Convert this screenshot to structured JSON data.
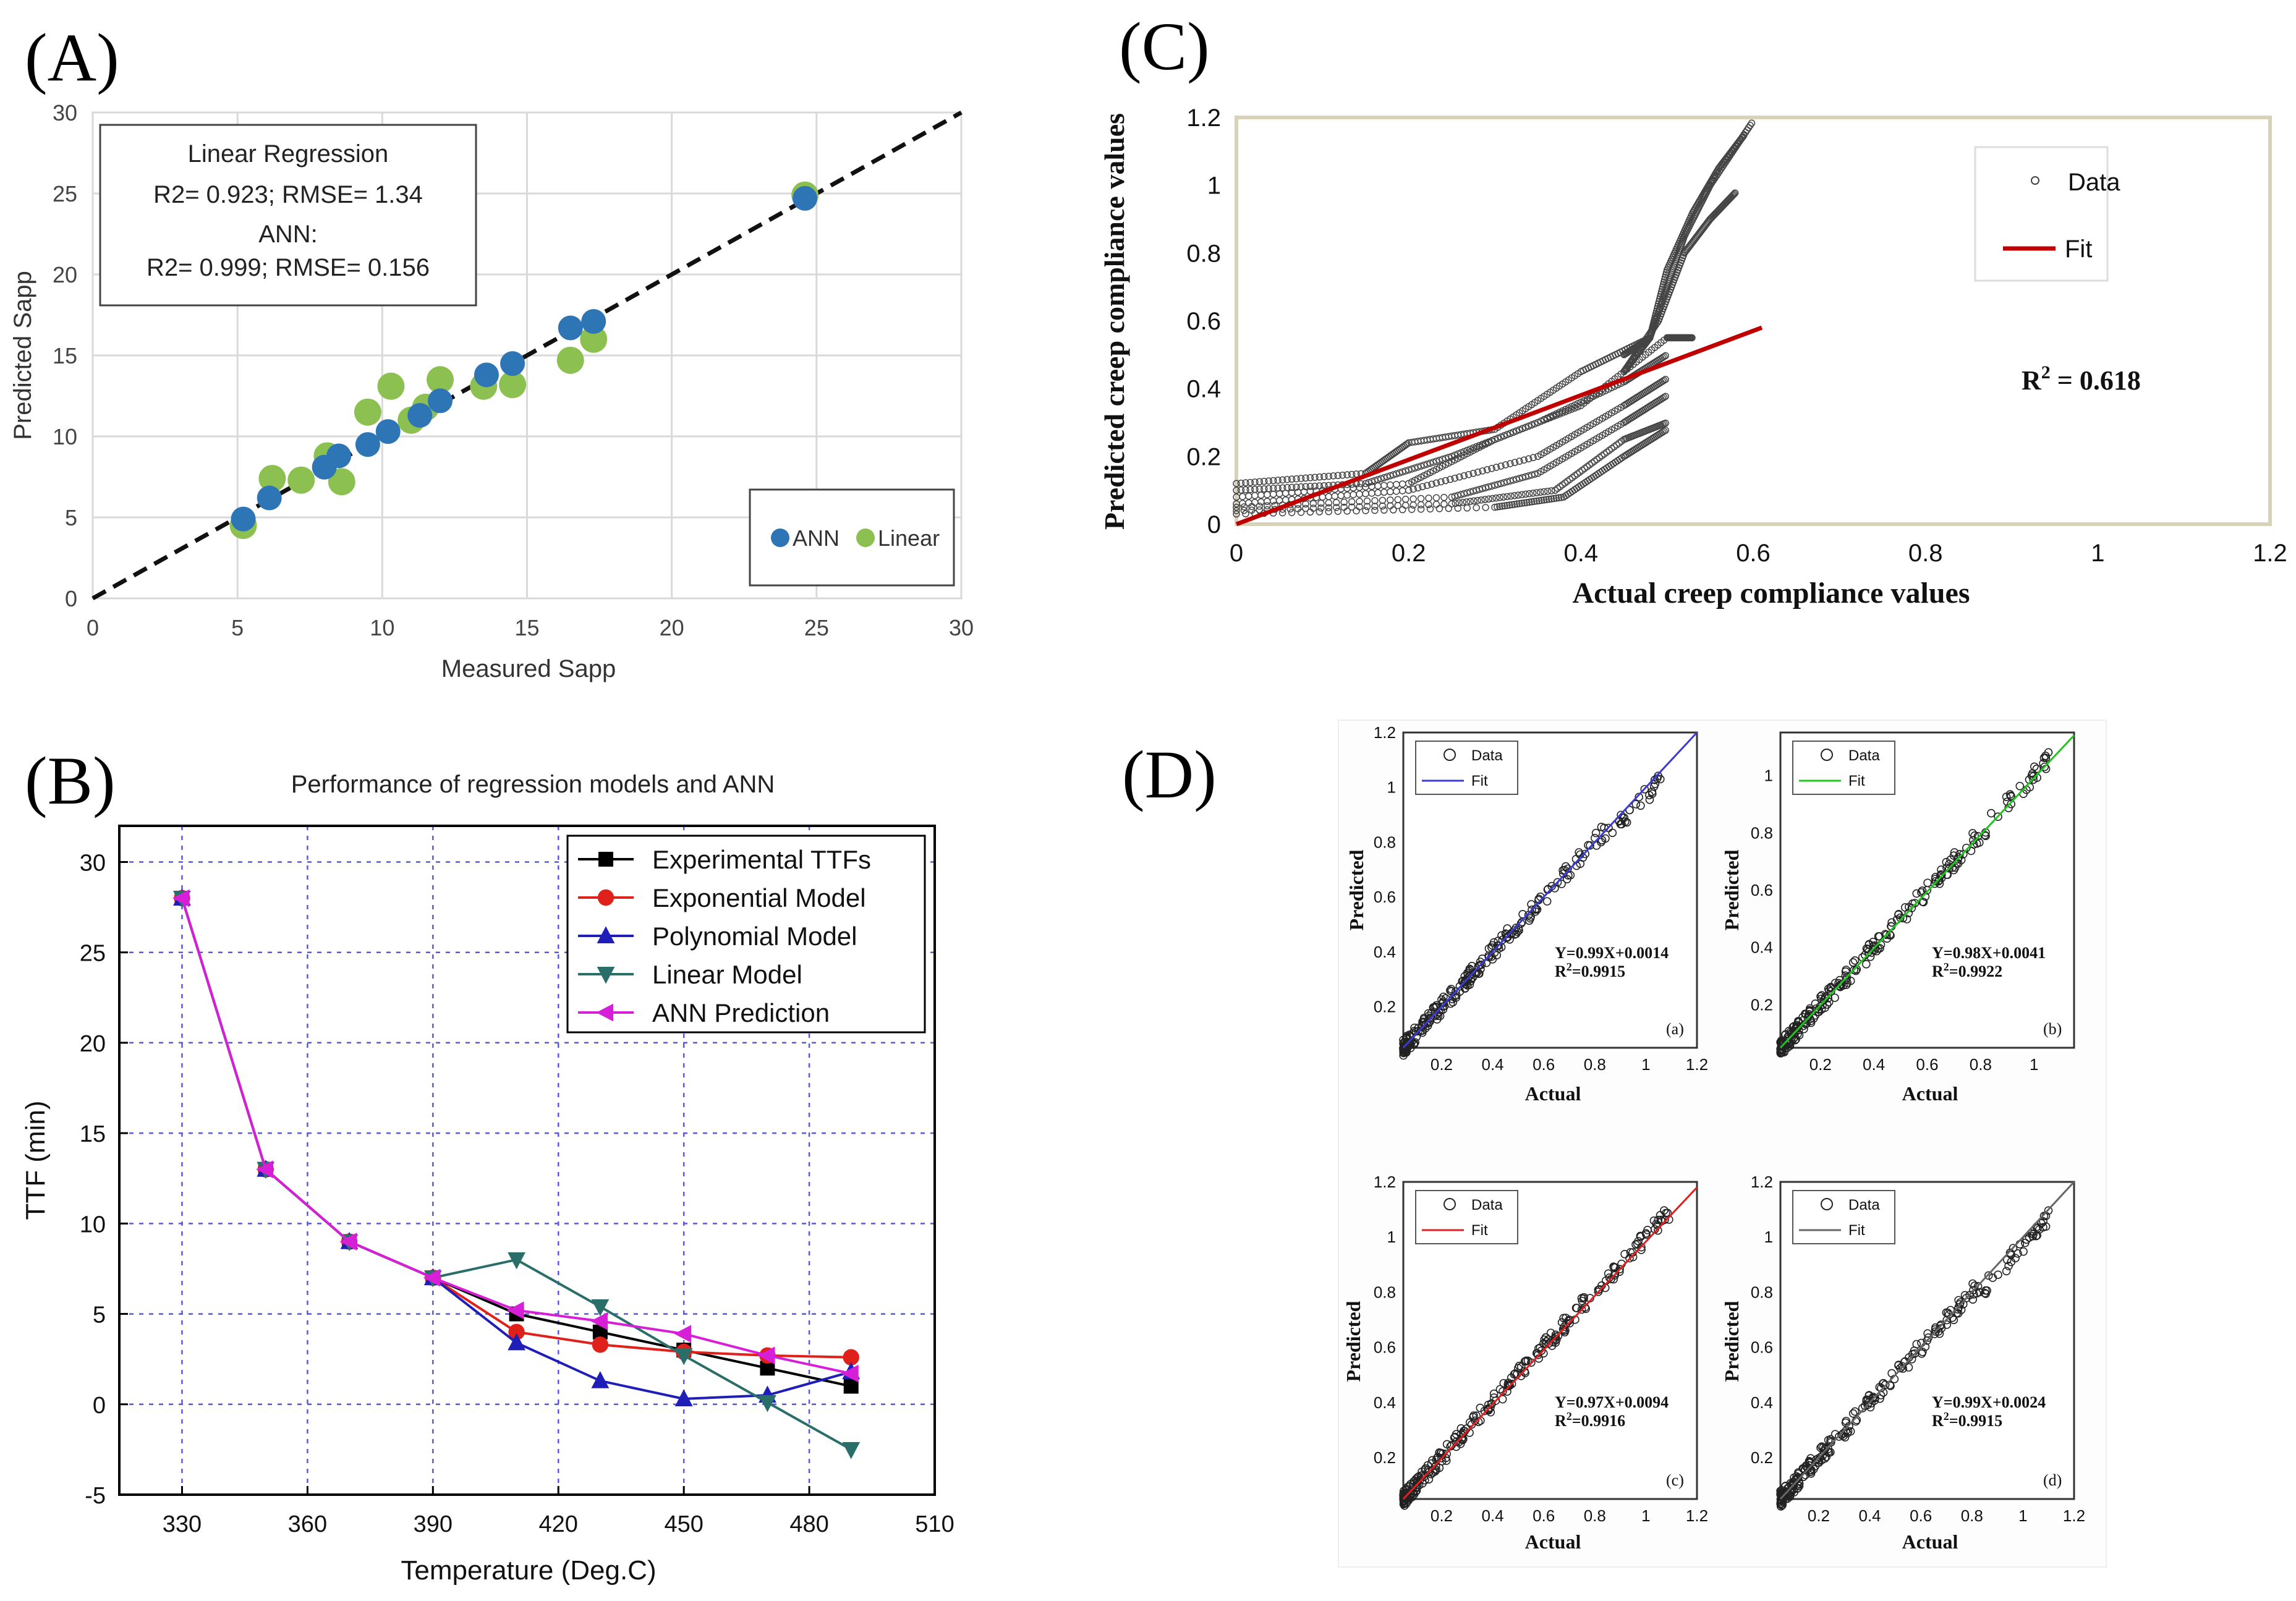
{
  "panels": {
    "a": "(A)",
    "b": "(B)",
    "c": "(C)",
    "d": "(D)"
  },
  "colors": {
    "ann_blue": "#2e75b6",
    "linear_green": "#8cc152",
    "exp_black": "#000000",
    "exp_red": "#e0201b",
    "poly_blue": "#1f1fb8",
    "lin_teal": "#2a6e6a",
    "ann_magenta": "#d61fd6",
    "fit_red": "#c00000",
    "frame_tan": "#d8d2b8"
  },
  "chart_data": [
    {
      "id": "A",
      "type": "scatter",
      "title": "",
      "xlabel": "Measured Sapp",
      "ylabel": "Predicted Sapp",
      "xlim": [
        0,
        30
      ],
      "ylim": [
        0,
        30
      ],
      "xticks": [
        0,
        5,
        10,
        15,
        20,
        25,
        30
      ],
      "yticks": [
        0,
        5,
        10,
        15,
        20,
        25,
        30
      ],
      "grid": true,
      "annotation": [
        "Linear Regression",
        "R2= 0.923; RMSE= 1.34",
        "ANN:",
        "R2= 0.999; RMSE= 0.156"
      ],
      "legend": [
        "ANN",
        "Linear"
      ],
      "legend_position": "bottom-right",
      "diagonal": [
        [
          0,
          0
        ],
        [
          30,
          30
        ]
      ],
      "series": [
        {
          "name": "ANN",
          "points": [
            [
              5.2,
              4.9
            ],
            [
              6.1,
              6.2
            ],
            [
              8.0,
              8.1
            ],
            [
              8.5,
              8.8
            ],
            [
              9.5,
              9.5
            ],
            [
              10.2,
              10.3
            ],
            [
              11.3,
              11.3
            ],
            [
              12.0,
              12.2
            ],
            [
              13.6,
              13.8
            ],
            [
              14.5,
              14.5
            ],
            [
              16.5,
              16.7
            ],
            [
              17.3,
              17.1
            ],
            [
              24.6,
              24.7
            ]
          ]
        },
        {
          "name": "Linear",
          "points": [
            [
              5.2,
              4.5
            ],
            [
              6.2,
              7.4
            ],
            [
              7.2,
              7.3
            ],
            [
              8.1,
              8.8
            ],
            [
              8.6,
              7.2
            ],
            [
              9.5,
              11.5
            ],
            [
              10.3,
              13.1
            ],
            [
              11.0,
              11.0
            ],
            [
              11.5,
              11.8
            ],
            [
              12.0,
              13.5
            ],
            [
              13.5,
              13.1
            ],
            [
              14.5,
              13.2
            ],
            [
              16.5,
              14.7
            ],
            [
              17.3,
              16.0
            ],
            [
              24.6,
              24.9
            ]
          ]
        }
      ]
    },
    {
      "id": "B",
      "type": "line",
      "title": "Performance of regression models and ANN",
      "xlabel": "Temperature (Deg.C)",
      "ylabel": "TTF (min)",
      "xlim": [
        315,
        510
      ],
      "ylim": [
        -5,
        32
      ],
      "xticks": [
        330,
        360,
        390,
        420,
        450,
        480,
        510
      ],
      "yticks": [
        -5,
        0,
        5,
        10,
        15,
        20,
        25,
        30
      ],
      "grid": true,
      "legend_position": "top-right",
      "x": [
        330,
        350,
        370,
        390,
        410,
        430,
        450,
        470,
        490
      ],
      "series": [
        {
          "name": "Experimental TTFs",
          "marker": "square",
          "values": [
            28,
            13,
            9,
            7,
            5,
            4,
            3,
            2,
            1
          ]
        },
        {
          "name": "Exponential Model",
          "marker": "circle",
          "values": [
            28,
            13,
            9,
            7,
            4,
            3.3,
            2.9,
            2.7,
            2.6
          ]
        },
        {
          "name": "Polynomial Model",
          "marker": "triangle-up",
          "values": [
            28,
            13,
            9,
            7,
            3.4,
            1.3,
            0.3,
            0.5,
            1.8
          ]
        },
        {
          "name": "Linear Model",
          "marker": "triangle-down",
          "values": [
            28,
            13,
            9,
            7,
            8,
            5.4,
            2.7,
            0.1,
            -2.5
          ]
        },
        {
          "name": "ANN Prediction",
          "marker": "triangle-left",
          "values": [
            28,
            13,
            9,
            7,
            5.2,
            4.6,
            3.9,
            2.7,
            1.7
          ]
        }
      ]
    },
    {
      "id": "C",
      "type": "scatter",
      "title": "",
      "xlabel": "Actual creep compliance values",
      "ylabel": "Predicted  creep  compliance values",
      "xlim": [
        0,
        1.2
      ],
      "ylim": [
        0,
        1.2
      ],
      "xticks": [
        "0",
        "0.2",
        "0.4",
        "0.6",
        "0.8",
        "1",
        "1.2"
      ],
      "yticks": [
        "0",
        "0.2",
        "0.4",
        "0.6",
        "0.8",
        "1",
        "1.2"
      ],
      "grid": false,
      "legend": [
        "Data",
        "Fit"
      ],
      "legend_position": "top-right",
      "annotation": "R",
      "annotation_sup": "2",
      "annotation_rest": " = 0.618",
      "fit_line": [
        [
          0,
          0
        ],
        [
          0.61,
          0.58
        ]
      ],
      "data_series": [
        {
          "points": [
            [
              0,
              0.12
            ],
            [
              0.15,
              0.15
            ],
            [
              0.2,
              0.24
            ],
            [
              0.3,
              0.28
            ],
            [
              0.4,
              0.45
            ],
            [
              0.48,
              0.55
            ]
          ]
        },
        {
          "points": [
            [
              0,
              0.1
            ],
            [
              0.15,
              0.12
            ],
            [
              0.25,
              0.2
            ],
            [
              0.35,
              0.3
            ],
            [
              0.45,
              0.42
            ],
            [
              0.5,
              0.5
            ]
          ]
        },
        {
          "points": [
            [
              0,
              0.08
            ],
            [
              0.2,
              0.12
            ],
            [
              0.3,
              0.25
            ],
            [
              0.4,
              0.35
            ],
            [
              0.5,
              0.55
            ],
            [
              0.53,
              0.55
            ]
          ]
        },
        {
          "points": [
            [
              0,
              0.06
            ],
            [
              0.2,
              0.1
            ],
            [
              0.35,
              0.2
            ],
            [
              0.45,
              0.35
            ],
            [
              0.5,
              0.43
            ]
          ]
        },
        {
          "points": [
            [
              0,
              0.05
            ],
            [
              0.25,
              0.08
            ],
            [
              0.35,
              0.15
            ],
            [
              0.45,
              0.3
            ],
            [
              0.5,
              0.38
            ]
          ]
        },
        {
          "points": [
            [
              0,
              0.04
            ],
            [
              0.25,
              0.06
            ],
            [
              0.37,
              0.1
            ],
            [
              0.45,
              0.25
            ],
            [
              0.5,
              0.3
            ]
          ]
        },
        {
          "points": [
            [
              0,
              0.03
            ],
            [
              0.3,
              0.05
            ],
            [
              0.38,
              0.08
            ],
            [
              0.45,
              0.2
            ],
            [
              0.5,
              0.28
            ]
          ]
        },
        {
          "points": [
            [
              0.45,
              0.5
            ],
            [
              0.48,
              0.55
            ],
            [
              0.5,
              0.7
            ],
            [
              0.52,
              0.85
            ],
            [
              0.55,
              1.0
            ],
            [
              0.6,
              1.19
            ]
          ]
        },
        {
          "points": [
            [
              0.45,
              0.45
            ],
            [
              0.48,
              0.55
            ],
            [
              0.5,
              0.75
            ],
            [
              0.53,
              0.92
            ],
            [
              0.56,
              1.05
            ],
            [
              0.59,
              1.15
            ]
          ]
        },
        {
          "points": [
            [
              0.45,
              0.45
            ],
            [
              0.49,
              0.6
            ],
            [
              0.52,
              0.8
            ],
            [
              0.55,
              0.9
            ],
            [
              0.58,
              0.98
            ]
          ]
        }
      ]
    },
    {
      "id": "D",
      "type": "scatter",
      "xlabel": "Actual",
      "ylabel": "Predicted",
      "legend": [
        "Data",
        "Fit"
      ],
      "subplots": [
        {
          "tag": "(a)",
          "fit_color": "#3b3bd1",
          "equation": "Y=0.99X+0.0014",
          "r2_prefix": "R",
          "r2_sup": "2",
          "r2_rest": "=0.9915",
          "xticks": [
            "0.2",
            "0.4",
            "0.6",
            "0.8",
            "1",
            "1.2"
          ],
          "yticks": [
            "0.2",
            "0.4",
            "0.6",
            "0.8",
            "1",
            "1.2"
          ],
          "xlim": [
            0.05,
            1.2
          ],
          "ylim": [
            0.05,
            1.2
          ],
          "fit": [
            [
              0.05,
              0.05
            ],
            [
              1.2,
              1.2
            ]
          ]
        },
        {
          "tag": "(b)",
          "fit_color": "#21c321",
          "equation": "Y=0.98X+0.0041",
          "r2_prefix": "R",
          "r2_sup": "2",
          "r2_rest": "=0.9922",
          "xticks": [
            "0.2",
            "0.4",
            "0.6",
            "0.8",
            "1"
          ],
          "yticks": [
            "0.2",
            "0.4",
            "0.6",
            "0.8",
            "1"
          ],
          "xlim": [
            0.05,
            1.15
          ],
          "ylim": [
            0.05,
            1.15
          ],
          "fit": [
            [
              0.05,
              0.05
            ],
            [
              1.15,
              1.14
            ]
          ]
        },
        {
          "tag": "(c)",
          "fit_color": "#e02020",
          "equation": "Y=0.97X+0.0094",
          "r2_prefix": "R",
          "r2_sup": "2",
          "r2_rest": "=0.9916",
          "xticks": [
            "0.2",
            "0.4",
            "0.6",
            "0.8",
            "1",
            "1.2"
          ],
          "yticks": [
            "0.2",
            "0.4",
            "0.6",
            "0.8",
            "1",
            "1.2"
          ],
          "xlim": [
            0.05,
            1.2
          ],
          "ylim": [
            0.05,
            1.2
          ],
          "fit": [
            [
              0.05,
              0.05
            ],
            [
              1.2,
              1.18
            ]
          ]
        },
        {
          "tag": "(d)",
          "fit_color": "#666666",
          "equation": "Y=0.99X+0.0024",
          "r2_prefix": "R",
          "r2_sup": "2",
          "r2_rest": "=0.9915",
          "xticks": [
            "0.2",
            "0.4",
            "0.6",
            "0.8",
            "1",
            "1.2"
          ],
          "yticks": [
            "0.2",
            "0.4",
            "0.6",
            "0.8",
            "1",
            "1.2"
          ],
          "xlim": [
            0.05,
            1.2
          ],
          "ylim": [
            0.05,
            1.2
          ],
          "fit": [
            [
              0.05,
              0.05
            ],
            [
              1.2,
              1.2
            ]
          ]
        }
      ]
    }
  ]
}
